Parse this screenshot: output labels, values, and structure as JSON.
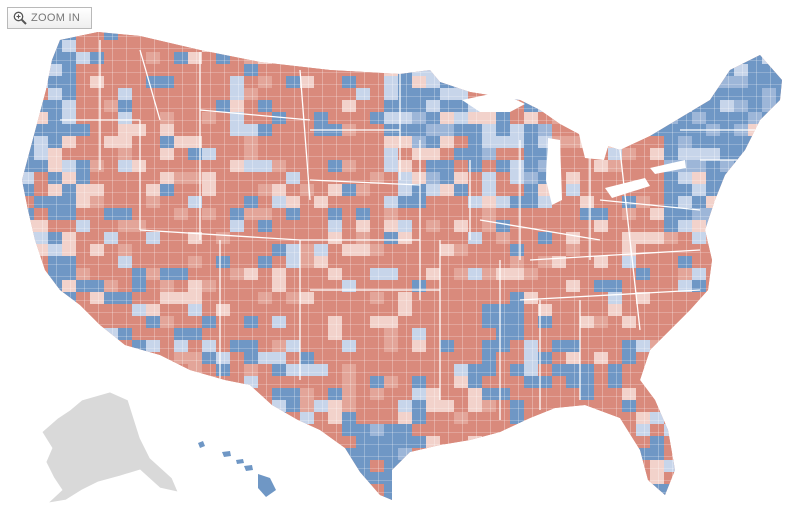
{
  "controls": {
    "zoom_in_label": "ZOOM IN",
    "zoom_icon": "magnifier-plus-icon"
  },
  "map": {
    "type": "county-choropleth",
    "regions": [
      "contiguous-us",
      "alaska",
      "hawaii"
    ],
    "colors": {
      "strong_red": "#d98a7c",
      "medium_red": "#e3a599",
      "light_red": "#f2d2cb",
      "strong_blue": "#6f97c5",
      "medium_blue": "#9db6d8",
      "light_blue": "#c7d5ea",
      "no_data": "#d9d9d9",
      "border": "#ffffff"
    }
  }
}
